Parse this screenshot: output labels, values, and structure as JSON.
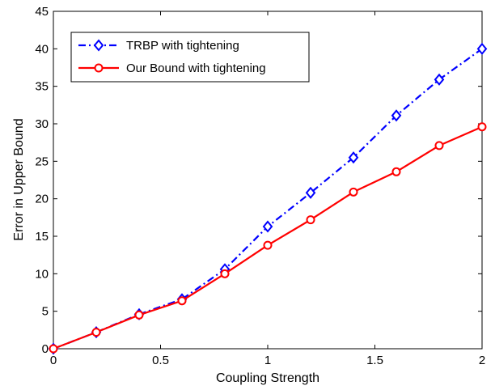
{
  "chart_data": {
    "type": "line",
    "title": "",
    "xlabel": "Coupling Strength",
    "ylabel": "Error in Upper Bound",
    "xlim": [
      0,
      2
    ],
    "ylim": [
      0,
      45
    ],
    "xticks": [
      0,
      0.5,
      1,
      1.5,
      2
    ],
    "xtick_labels": [
      "0",
      "0.5",
      "1",
      "1.5",
      "2"
    ],
    "yticks": [
      0,
      5,
      10,
      15,
      20,
      25,
      30,
      35,
      40,
      45
    ],
    "ytick_labels": [
      "0",
      "5",
      "10",
      "15",
      "20",
      "25",
      "30",
      "35",
      "40",
      "45"
    ],
    "grid": false,
    "legend_position": "top-left",
    "x": [
      0,
      0.2,
      0.4,
      0.6,
      0.8,
      1.0,
      1.2,
      1.4,
      1.6,
      1.8,
      2.0
    ],
    "series": [
      {
        "name": "TRBP with tightening",
        "color": "#0000ff",
        "line_style": "dash-dot",
        "marker": "diamond",
        "values": [
          0,
          2.2,
          4.6,
          6.6,
          10.6,
          16.3,
          20.8,
          25.5,
          31.1,
          35.9,
          40.0
        ]
      },
      {
        "name": "Our Bound with tightening",
        "color": "#ff0000",
        "line_style": "solid",
        "marker": "circle",
        "values": [
          0,
          2.2,
          4.5,
          6.4,
          10.0,
          13.8,
          17.2,
          20.9,
          23.6,
          27.1,
          29.6
        ]
      }
    ]
  }
}
